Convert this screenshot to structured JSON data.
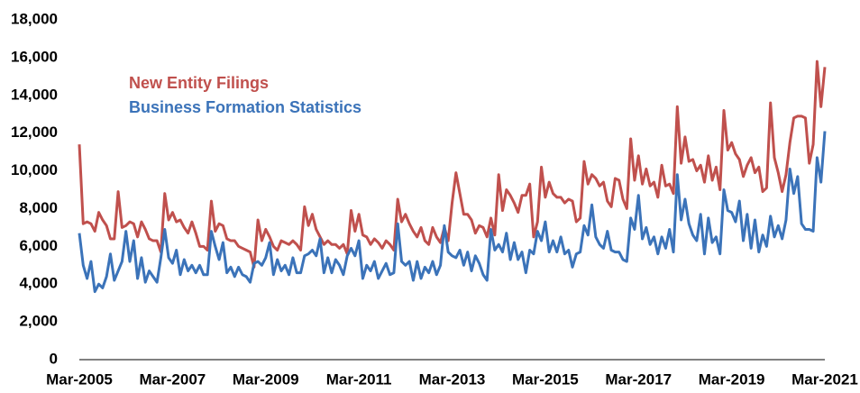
{
  "chart_data": {
    "type": "line",
    "categories": [
      "Mar-2005",
      null,
      null,
      null,
      null,
      null,
      null,
      null,
      null,
      null,
      null,
      null,
      null,
      null,
      null,
      null,
      null,
      null,
      null,
      null,
      null,
      null,
      null,
      null,
      "Mar-2007",
      null,
      null,
      null,
      null,
      null,
      null,
      null,
      null,
      null,
      null,
      null,
      null,
      null,
      null,
      null,
      null,
      null,
      null,
      null,
      null,
      null,
      null,
      null,
      "Mar-2009",
      null,
      null,
      null,
      null,
      null,
      null,
      null,
      null,
      null,
      null,
      null,
      null,
      null,
      null,
      null,
      null,
      null,
      null,
      null,
      null,
      null,
      null,
      null,
      "Mar-2011",
      null,
      null,
      null,
      null,
      null,
      null,
      null,
      null,
      null,
      null,
      null,
      null,
      null,
      null,
      null,
      null,
      null,
      null,
      null,
      null,
      null,
      null,
      null,
      "Mar-2013",
      null,
      null,
      null,
      null,
      null,
      null,
      null,
      null,
      null,
      null,
      null,
      null,
      null,
      null,
      null,
      null,
      null,
      null,
      null,
      null,
      null,
      null,
      null,
      "Mar-2015",
      null,
      null,
      null,
      null,
      null,
      null,
      null,
      null,
      null,
      null,
      null,
      null,
      null,
      null,
      null,
      null,
      null,
      null,
      null,
      null,
      null,
      null,
      null,
      "Mar-2017",
      null,
      null,
      null,
      null,
      null,
      null,
      null,
      null,
      null,
      null,
      null,
      null,
      null,
      null,
      null,
      null,
      null,
      null,
      null,
      null,
      null,
      null,
      null,
      "Mar-2019",
      null,
      null,
      null,
      null,
      null,
      null,
      null,
      null,
      null,
      null,
      null,
      null,
      null,
      null,
      null,
      null,
      null,
      null,
      null,
      null,
      null,
      null,
      null,
      "Mar-2021"
    ],
    "series": [
      {
        "name": "New Entity Filings",
        "color": "#c0504d",
        "values": [
          11400,
          7200,
          7300,
          7200,
          6800,
          7800,
          7400,
          7100,
          6400,
          6400,
          8900,
          7000,
          7100,
          7300,
          7200,
          6500,
          7300,
          6900,
          6400,
          6300,
          6300,
          5700,
          8800,
          7400,
          7800,
          7300,
          7400,
          7000,
          6700,
          7300,
          6700,
          6000,
          6000,
          5800,
          8400,
          6800,
          7200,
          7100,
          6400,
          6300,
          6300,
          6000,
          5900,
          5800,
          5700,
          4900,
          7400,
          6300,
          6900,
          6500,
          6000,
          5800,
          6300,
          6200,
          6100,
          6300,
          6100,
          5800,
          8100,
          7100,
          7700,
          6900,
          6500,
          6100,
          6300,
          6100,
          6100,
          5900,
          6100,
          5600,
          7900,
          6800,
          7700,
          6600,
          6500,
          6100,
          6400,
          6200,
          5900,
          6300,
          6100,
          5800,
          8500,
          7300,
          7700,
          7200,
          6800,
          6500,
          7000,
          6300,
          6100,
          7000,
          6500,
          6200,
          7000,
          6300,
          8300,
          9900,
          8800,
          7700,
          7700,
          7400,
          6700,
          7100,
          7000,
          6500,
          7500,
          6600,
          9800,
          7900,
          9000,
          8700,
          8300,
          7800,
          8700,
          8700,
          9300,
          6500,
          7300,
          10200,
          8600,
          9400,
          8800,
          8600,
          8600,
          8300,
          8500,
          8400,
          7300,
          7500,
          10500,
          9300,
          9800,
          9600,
          9200,
          9400,
          8400,
          8100,
          9600,
          9500,
          8500,
          8000,
          11700,
          9500,
          10800,
          9300,
          10100,
          9200,
          9400,
          8600,
          10300,
          9200,
          9300,
          8800,
          13400,
          10400,
          11800,
          10500,
          10600,
          10000,
          10300,
          9400,
          10800,
          9500,
          10200,
          9000,
          13200,
          11100,
          11500,
          10900,
          10600,
          9700,
          10300,
          10700,
          9900,
          10200,
          8900,
          9100,
          13600,
          10700,
          9900,
          8900,
          9800,
          11500,
          12800,
          12900,
          12900,
          12800,
          10400,
          11400,
          15800,
          13400,
          15500
        ]
      },
      {
        "name": "Business Formation Statistics",
        "color": "#3b73b9",
        "values": [
          6700,
          5000,
          4300,
          5200,
          3600,
          4000,
          3800,
          4400,
          5600,
          4200,
          4700,
          5200,
          6800,
          5200,
          6300,
          4300,
          5400,
          4100,
          4700,
          4400,
          4100,
          5400,
          6900,
          5400,
          5100,
          5800,
          4500,
          5300,
          4700,
          5000,
          4600,
          5000,
          4500,
          4500,
          6800,
          6000,
          5300,
          6200,
          4600,
          4900,
          4400,
          4900,
          4500,
          4400,
          4100,
          5100,
          5200,
          5000,
          5400,
          6200,
          4500,
          5300,
          4700,
          5000,
          4500,
          5400,
          4600,
          4600,
          5500,
          5600,
          5800,
          5500,
          6400,
          4600,
          5400,
          4600,
          5300,
          5000,
          4500,
          5500,
          5900,
          5500,
          6300,
          4300,
          5000,
          4700,
          5200,
          4300,
          4700,
          5100,
          4500,
          4600,
          7200,
          5200,
          5000,
          5200,
          4200,
          5200,
          4300,
          4900,
          4600,
          5200,
          4500,
          5000,
          7100,
          5700,
          5500,
          5400,
          5800,
          5000,
          5700,
          4700,
          5500,
          5100,
          4500,
          4200,
          6900,
          5800,
          6100,
          5700,
          6700,
          5300,
          6200,
          5300,
          5700,
          4600,
          5800,
          5600,
          6800,
          6300,
          7300,
          5700,
          6300,
          5700,
          6500,
          5600,
          5800,
          4900,
          5600,
          5700,
          7100,
          6600,
          8200,
          6500,
          6100,
          5900,
          6800,
          5800,
          5700,
          5700,
          5300,
          5200,
          7500,
          6900,
          8700,
          6400,
          7000,
          6100,
          6500,
          5600,
          6500,
          5900,
          6900,
          5700,
          9800,
          7400,
          8500,
          7200,
          6600,
          6300,
          7700,
          5600,
          7500,
          6200,
          6500,
          5600,
          9000,
          7900,
          7800,
          7300,
          8400,
          6300,
          7700,
          5900,
          7400,
          5700,
          6600,
          6000,
          7600,
          6500,
          7100,
          6400,
          7400,
          10100,
          8800,
          9700,
          7200,
          6900,
          6900,
          6800,
          10700,
          9400,
          12100
        ]
      }
    ],
    "ylim": [
      0,
      18000
    ],
    "yticks": [
      0,
      {
        "value": 2000,
        "label": "2,000"
      },
      {
        "value": 4000,
        "label": "4,000"
      },
      {
        "value": 6000,
        "label": "6,000"
      },
      {
        "value": 8000,
        "label": "8,000"
      },
      {
        "value": 10000,
        "label": "10,000"
      },
      {
        "value": 12000,
        "label": "12,000"
      },
      {
        "value": 14000,
        "label": "14,000"
      },
      {
        "value": 16000,
        "label": "16,000"
      },
      {
        "value": 18000,
        "label": "18,000"
      }
    ],
    "grid": false,
    "legend": "upper left"
  }
}
